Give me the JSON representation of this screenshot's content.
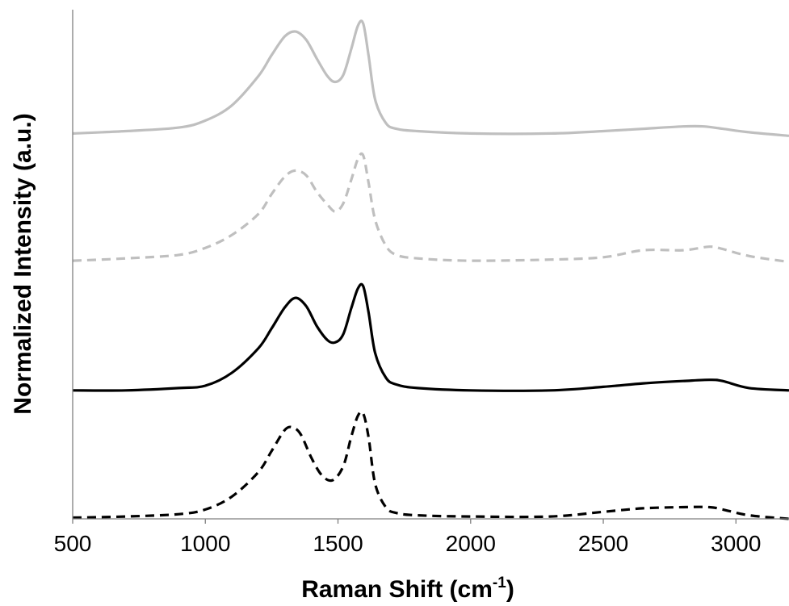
{
  "chart_data": {
    "type": "line",
    "xlabel_main": "Raman Shift (cm",
    "xlabel_sup": "-1",
    "xlabel_close": ")",
    "ylabel": "Normalized Intensity (a.u.)",
    "xlim": [
      500,
      3200
    ],
    "ylim": [
      0,
      4
    ],
    "xticks": [
      500,
      1000,
      1500,
      2000,
      2500,
      3000
    ],
    "yticks_shown": false,
    "grid": false,
    "legend": "none",
    "series": [
      {
        "color": "#bfbfbf",
        "dash": "solid",
        "offset": 3,
        "x": [
          500,
          700,
          900,
          1000,
          1100,
          1200,
          1250,
          1300,
          1340,
          1380,
          1420,
          1460,
          1490,
          1520,
          1550,
          1575,
          1595,
          1615,
          1640,
          1680,
          1720,
          1800,
          2000,
          2300,
          2500,
          2650,
          2800,
          2880,
          2950,
          3050,
          3200
        ],
        "y": [
          0.03,
          0.05,
          0.08,
          0.14,
          0.27,
          0.52,
          0.7,
          0.86,
          0.9,
          0.83,
          0.67,
          0.52,
          0.47,
          0.53,
          0.75,
          0.95,
          0.97,
          0.7,
          0.32,
          0.12,
          0.07,
          0.05,
          0.03,
          0.03,
          0.05,
          0.07,
          0.09,
          0.09,
          0.07,
          0.04,
          0.01
        ]
      },
      {
        "color": "#bfbfbf",
        "dash": "dashed",
        "offset": 2,
        "x": [
          500,
          700,
          900,
          1000,
          1100,
          1200,
          1250,
          1300,
          1340,
          1380,
          1420,
          1460,
          1490,
          1520,
          1550,
          1575,
          1595,
          1615,
          1640,
          1680,
          1720,
          1800,
          2000,
          2300,
          2500,
          2650,
          2800,
          2900,
          2950,
          3050,
          3200
        ],
        "y": [
          0.03,
          0.05,
          0.08,
          0.14,
          0.25,
          0.43,
          0.6,
          0.75,
          0.8,
          0.76,
          0.62,
          0.51,
          0.45,
          0.52,
          0.72,
          0.9,
          0.93,
          0.7,
          0.38,
          0.16,
          0.08,
          0.05,
          0.03,
          0.04,
          0.06,
          0.12,
          0.12,
          0.15,
          0.13,
          0.07,
          0.02
        ]
      },
      {
        "color": "#000000",
        "dash": "solid",
        "offset": 1,
        "x": [
          500,
          700,
          900,
          1000,
          1100,
          1200,
          1250,
          1300,
          1340,
          1380,
          1420,
          1460,
          1490,
          1520,
          1550,
          1575,
          1595,
          1615,
          1640,
          1680,
          1720,
          1800,
          2000,
          2300,
          2500,
          2650,
          2800,
          2900,
          2950,
          3050,
          3200
        ],
        "y": [
          0.01,
          0.01,
          0.03,
          0.05,
          0.16,
          0.37,
          0.54,
          0.72,
          0.8,
          0.73,
          0.56,
          0.44,
          0.42,
          0.49,
          0.71,
          0.88,
          0.9,
          0.68,
          0.33,
          0.12,
          0.06,
          0.03,
          0.01,
          0.01,
          0.04,
          0.07,
          0.09,
          0.1,
          0.09,
          0.03,
          0.01
        ]
      },
      {
        "color": "#000000",
        "dash": "dashed",
        "offset": 0,
        "x": [
          500,
          700,
          900,
          1000,
          1100,
          1200,
          1250,
          1300,
          1330,
          1360,
          1400,
          1440,
          1480,
          1520,
          1550,
          1575,
          1595,
          1615,
          1640,
          1680,
          1720,
          1800,
          2000,
          2300,
          2500,
          2650,
          2800,
          2900,
          2950,
          3050,
          3200
        ],
        "y": [
          0.01,
          0.02,
          0.04,
          0.08,
          0.19,
          0.4,
          0.58,
          0.76,
          0.78,
          0.72,
          0.52,
          0.37,
          0.33,
          0.45,
          0.7,
          0.88,
          0.9,
          0.7,
          0.3,
          0.1,
          0.05,
          0.03,
          0.02,
          0.02,
          0.06,
          0.09,
          0.1,
          0.1,
          0.08,
          0.03,
          0.0
        ]
      }
    ]
  }
}
